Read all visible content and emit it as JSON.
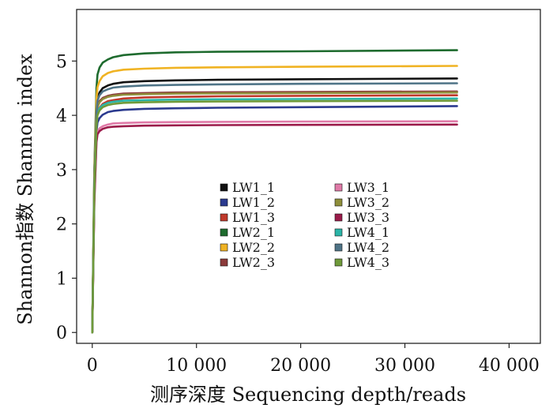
{
  "chart_data": {
    "type": "line",
    "title": "",
    "xlabel": "测序深度 Sequencing depth/reads",
    "ylabel": "Shannon指数 Shannon index",
    "xlim": [
      -1500,
      43000
    ],
    "ylim": [
      -0.2,
      5.95
    ],
    "xticks": [
      0,
      10000,
      20000,
      30000,
      40000
    ],
    "xtick_labels": [
      "0",
      "10 000",
      "20 000",
      "30 000",
      "40 000"
    ],
    "yticks": [
      0,
      1,
      2,
      3,
      4,
      5
    ],
    "ytick_labels": [
      "0",
      "1",
      "2",
      "3",
      "4",
      "5"
    ],
    "grid": false,
    "legend_position": "center",
    "x": [
      0,
      200,
      400,
      500,
      700,
      1000,
      1500,
      2000,
      3000,
      5000,
      8000,
      12000,
      20000,
      35000
    ],
    "series": [
      {
        "name": "LW1_1",
        "color": "#111111",
        "values": [
          0,
          2.8,
          4.1,
          4.32,
          4.42,
          4.5,
          4.55,
          4.58,
          4.61,
          4.63,
          4.645,
          4.655,
          4.665,
          4.68
        ]
      },
      {
        "name": "LW1_2",
        "color": "#2b3a8f",
        "values": [
          0,
          2.5,
          3.7,
          3.87,
          3.95,
          4.01,
          4.06,
          4.08,
          4.1,
          4.12,
          4.13,
          4.14,
          4.15,
          4.17
        ]
      },
      {
        "name": "LW1_3",
        "color": "#c0392b",
        "values": [
          0,
          2.6,
          3.85,
          4.05,
          4.14,
          4.21,
          4.26,
          4.28,
          4.31,
          4.33,
          4.34,
          4.35,
          4.36,
          4.37
        ]
      },
      {
        "name": "LW2_1",
        "color": "#1e6b2e",
        "values": [
          0,
          3.0,
          4.5,
          4.75,
          4.88,
          4.97,
          5.03,
          5.07,
          5.11,
          5.14,
          5.16,
          5.17,
          5.18,
          5.2
        ]
      },
      {
        "name": "LW2_2",
        "color": "#f0b323",
        "values": [
          0,
          2.9,
          4.3,
          4.52,
          4.63,
          4.72,
          4.78,
          4.81,
          4.84,
          4.86,
          4.875,
          4.885,
          4.895,
          4.91
        ]
      },
      {
        "name": "LW2_3",
        "color": "#8b3a3a",
        "values": [
          0,
          2.7,
          3.95,
          4.17,
          4.26,
          4.32,
          4.36,
          4.38,
          4.4,
          4.41,
          4.42,
          4.425,
          4.43,
          4.44
        ]
      },
      {
        "name": "LW3_1",
        "color": "#e07aa8",
        "values": [
          0,
          2.4,
          3.55,
          3.7,
          3.76,
          3.8,
          3.83,
          3.85,
          3.86,
          3.87,
          3.875,
          3.88,
          3.885,
          3.89
        ]
      },
      {
        "name": "LW3_2",
        "color": "#8f8f3a",
        "values": [
          0,
          2.7,
          3.95,
          4.15,
          4.24,
          4.3,
          4.34,
          4.36,
          4.38,
          4.39,
          4.4,
          4.405,
          4.41,
          4.42
        ]
      },
      {
        "name": "LW3_3",
        "color": "#9b1b4a",
        "values": [
          0,
          2.4,
          3.5,
          3.65,
          3.71,
          3.75,
          3.78,
          3.79,
          3.8,
          3.81,
          3.815,
          3.82,
          3.825,
          3.83
        ]
      },
      {
        "name": "LW4_1",
        "color": "#2bb5a8",
        "values": [
          0,
          2.65,
          3.85,
          4.04,
          4.13,
          4.19,
          4.23,
          4.25,
          4.27,
          4.28,
          4.29,
          4.295,
          4.3,
          4.31
        ]
      },
      {
        "name": "LW4_2",
        "color": "#4f7487",
        "values": [
          0,
          2.75,
          4.05,
          4.27,
          4.37,
          4.44,
          4.48,
          4.51,
          4.53,
          4.55,
          4.56,
          4.57,
          4.58,
          4.59
        ]
      },
      {
        "name": "LW4_3",
        "color": "#6f9a3a",
        "values": [
          0,
          2.6,
          3.8,
          4.0,
          4.09,
          4.15,
          4.19,
          4.21,
          4.23,
          4.24,
          4.25,
          4.255,
          4.26,
          4.27
        ]
      }
    ]
  }
}
